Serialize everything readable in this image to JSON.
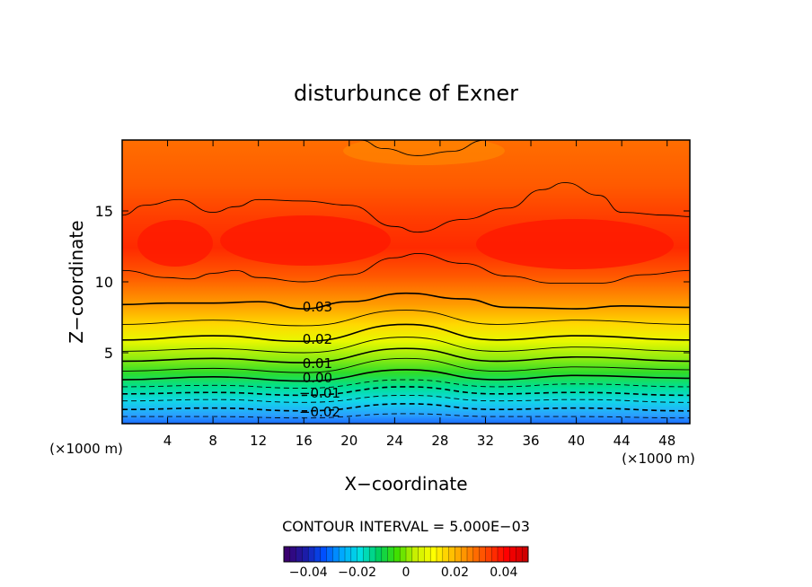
{
  "chart_data": {
    "type": "contour",
    "title": "disturbunce of Exner",
    "xlabel": "X−coordinate",
    "ylabel": "Z−coordinate",
    "x_unit_left": "(×1000 m)",
    "x_unit_right": "(×1000 m)",
    "xlim": [
      0,
      50
    ],
    "ylim": [
      0,
      20
    ],
    "xticks": [
      4,
      8,
      12,
      16,
      20,
      24,
      28,
      32,
      36,
      40,
      44,
      48
    ],
    "xtick_labels": [
      "4",
      "8",
      "12",
      "16",
      "20",
      "24",
      "28",
      "32",
      "36",
      "40",
      "44",
      "48"
    ],
    "yticks": [
      5,
      10,
      15
    ],
    "ytick_labels": [
      "5",
      "10",
      "15"
    ],
    "contour_interval_text": "CONTOUR INTERVAL = 5.000E−03",
    "contour_labels": [
      {
        "text": "0.03",
        "x": 17.2,
        "y": 8.3
      },
      {
        "text": "0.02",
        "x": 17.2,
        "y": 6.0
      },
      {
        "text": "0.01",
        "x": 17.2,
        "y": 4.3
      },
      {
        "text": "0.00",
        "x": 17.2,
        "y": 3.3
      },
      {
        "text": "−0.01",
        "x": 17.4,
        "y": 2.2
      },
      {
        "text": "−0.02",
        "x": 17.4,
        "y": 0.9
      }
    ],
    "contour_lines": [
      {
        "level": -0.025,
        "dashed": true,
        "x": [
          0,
          8,
          16,
          25,
          33,
          40,
          50
        ],
        "z": [
          0.5,
          0.5,
          0.4,
          0.7,
          0.5,
          0.5,
          0.4
        ]
      },
      {
        "level": -0.02,
        "dashed": true,
        "x": [
          0,
          8,
          16,
          25,
          33,
          40,
          50
        ],
        "z": [
          1.0,
          1.1,
          0.9,
          1.4,
          1.0,
          1.1,
          0.9
        ]
      },
      {
        "level": -0.015,
        "dashed": true,
        "x": [
          0,
          8,
          16,
          25,
          33,
          40,
          50
        ],
        "z": [
          1.6,
          1.7,
          1.5,
          2.0,
          1.6,
          1.7,
          1.5
        ]
      },
      {
        "level": -0.01,
        "dashed": true,
        "x": [
          0,
          8,
          16,
          25,
          33,
          40,
          50
        ],
        "z": [
          2.1,
          2.2,
          2.0,
          2.6,
          2.1,
          2.2,
          2.0
        ]
      },
      {
        "level": -0.005,
        "dashed": true,
        "x": [
          0,
          8,
          16,
          25,
          33,
          40,
          50
        ],
        "z": [
          2.6,
          2.7,
          2.5,
          3.1,
          2.6,
          2.8,
          2.6
        ]
      },
      {
        "level": 0.0,
        "dashed": false,
        "x": [
          0,
          8,
          16,
          25,
          33,
          40,
          50
        ],
        "z": [
          3.1,
          3.3,
          3.0,
          3.8,
          3.1,
          3.4,
          3.2
        ]
      },
      {
        "level": 0.005,
        "dashed": false,
        "x": [
          0,
          8,
          16,
          25,
          33,
          40,
          50
        ],
        "z": [
          3.7,
          3.9,
          3.6,
          4.6,
          3.7,
          4.0,
          3.8
        ]
      },
      {
        "level": 0.01,
        "dashed": false,
        "x": [
          0,
          8,
          16,
          25,
          33,
          40,
          50
        ],
        "z": [
          4.4,
          4.6,
          4.3,
          5.3,
          4.4,
          4.7,
          4.4
        ]
      },
      {
        "level": 0.015,
        "dashed": false,
        "x": [
          0,
          8,
          16,
          25,
          33,
          40,
          50
        ],
        "z": [
          5.1,
          5.3,
          5.0,
          6.1,
          5.1,
          5.4,
          5.1
        ]
      },
      {
        "level": 0.02,
        "dashed": false,
        "x": [
          0,
          8,
          16,
          25,
          33,
          40,
          50
        ],
        "z": [
          5.9,
          6.2,
          5.8,
          7.0,
          5.9,
          6.2,
          5.9
        ]
      },
      {
        "level": 0.025,
        "dashed": false,
        "x": [
          0,
          8,
          16,
          25,
          33,
          40,
          50
        ],
        "z": [
          7.0,
          7.3,
          6.9,
          8.0,
          7.0,
          7.3,
          7.0
        ]
      },
      {
        "level": 0.03,
        "dashed": false,
        "x": [
          0,
          4,
          8,
          12,
          16,
          20,
          25,
          30,
          34,
          40,
          44,
          50
        ],
        "z": [
          8.4,
          8.5,
          8.5,
          8.6,
          8.1,
          8.6,
          9.2,
          8.8,
          8.2,
          8.1,
          8.3,
          8.2
        ]
      },
      {
        "level": 0.035,
        "dashed": false,
        "x": [
          0,
          4,
          6,
          8,
          10,
          12,
          16,
          20,
          24,
          26,
          30,
          34,
          38,
          42,
          46,
          50
        ],
        "z": [
          10.8,
          10.3,
          10.2,
          10.6,
          10.8,
          10.3,
          10.0,
          10.5,
          11.7,
          12.0,
          11.3,
          10.4,
          9.9,
          9.9,
          10.5,
          10.8
        ]
      },
      {
        "level": 0.035,
        "dashed": false,
        "x": [
          0,
          2,
          5,
          8,
          10,
          12,
          16,
          20,
          24,
          26,
          30,
          34,
          37,
          39,
          42,
          44,
          48,
          50
        ],
        "z": [
          14.7,
          15.4,
          15.8,
          14.9,
          15.3,
          15.8,
          15.7,
          15.4,
          13.9,
          13.5,
          14.4,
          15.2,
          16.5,
          17.0,
          16.1,
          14.9,
          14.7,
          14.6
        ]
      },
      {
        "level": 0.035,
        "dashed": false,
        "x": [
          21,
          23,
          26,
          29,
          32
        ],
        "z": [
          20.0,
          19.4,
          18.9,
          19.2,
          20.0
        ]
      }
    ],
    "colorbar": {
      "ticks": [
        -0.04,
        -0.02,
        0,
        0.02,
        0.04
      ],
      "tick_labels": [
        "−0.04",
        "−0.02",
        "0",
        "0.02",
        "0.04"
      ],
      "range": [
        -0.05,
        0.05
      ],
      "colors": [
        "#3a0070",
        "#1c1ca8",
        "#0050ff",
        "#00a8ff",
        "#00e0e0",
        "#00d060",
        "#40e000",
        "#c8f000",
        "#ffff00",
        "#ffc000",
        "#ff8000",
        "#ff4000",
        "#ff0000",
        "#d00000"
      ]
    },
    "grid": false
  }
}
